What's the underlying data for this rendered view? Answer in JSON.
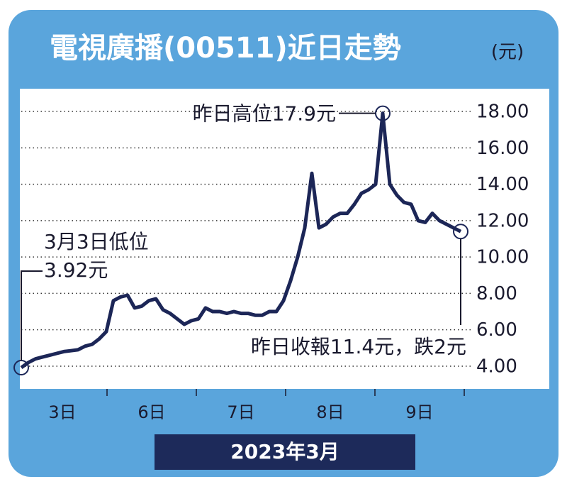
{
  "chart_data": {
    "type": "line",
    "title": "電視廣播(00511)近日走勢",
    "y_unit": "(元)",
    "x_label": "2023年3月",
    "x_labels": [
      "3日",
      "6日",
      "7日",
      "8日",
      "9日"
    ],
    "series": [
      {
        "name": "電視廣播",
        "color": "#1c2657",
        "values": [
          3.92,
          4.2,
          4.4,
          4.5,
          4.6,
          4.7,
          4.8,
          4.85,
          4.9,
          5.1,
          5.2,
          5.5,
          5.9,
          7.6,
          7.8,
          7.9,
          7.2,
          7.3,
          7.6,
          7.7,
          7.1,
          6.9,
          6.6,
          6.3,
          6.5,
          6.6,
          7.2,
          7.0,
          7.0,
          6.9,
          7.0,
          6.9,
          6.9,
          6.8,
          6.8,
          7.0,
          7.0,
          7.6,
          8.7,
          10.0,
          11.6,
          14.6,
          11.6,
          11.8,
          12.2,
          12.4,
          12.4,
          12.9,
          13.5,
          13.7,
          14.0,
          17.9,
          14.0,
          13.4,
          13.0,
          12.9,
          12.0,
          11.9,
          12.4,
          12.0,
          11.8,
          11.6,
          11.4
        ]
      }
    ],
    "ylim": [
      2.75,
      19.25
    ],
    "yticks": [
      {
        "value": 4,
        "label": "4.00"
      },
      {
        "value": 6,
        "label": "6.00"
      },
      {
        "value": 8,
        "label": "8.00"
      },
      {
        "value": 10,
        "label": "10.00"
      },
      {
        "value": 12,
        "label": "12.00"
      },
      {
        "value": 14,
        "label": "14.00"
      },
      {
        "value": 16,
        "label": "16.00"
      },
      {
        "value": 18,
        "label": "18.00"
      }
    ],
    "grid": true,
    "annotations": [
      "昨日高位17.9元",
      "3月3日低位",
      "3.92元",
      "昨日收報11.4元，跌2元"
    ]
  }
}
